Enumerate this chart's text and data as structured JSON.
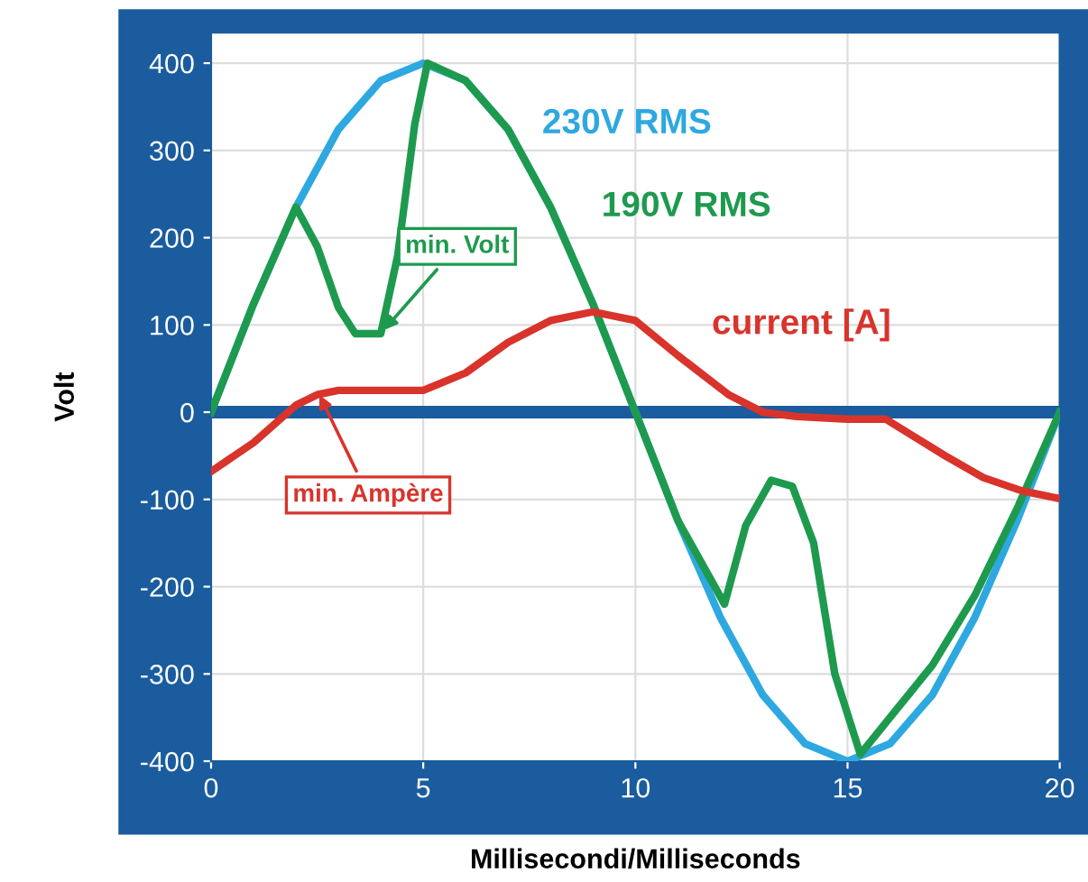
{
  "chart_data": {
    "type": "line",
    "xlabel": "Millisecondi/Milliseconds",
    "ylabel": "Volt",
    "xlim": [
      0,
      20
    ],
    "xticks": [
      0,
      5,
      10,
      15,
      20
    ],
    "ylim": [
      -400,
      435
    ],
    "yticks": [
      -400,
      -300,
      -200,
      -100,
      0,
      100,
      200,
      300,
      400
    ],
    "grid": true,
    "legend": false,
    "series": [
      {
        "name": "230V RMS",
        "color": "#2ea8e0",
        "x": [
          0,
          1,
          2,
          3,
          4,
          5,
          6,
          7,
          8,
          9,
          10,
          11,
          12,
          13,
          14,
          15,
          16,
          17,
          18,
          19,
          20
        ],
        "values": [
          0,
          124,
          235,
          324,
          380,
          400,
          380,
          324,
          235,
          124,
          0,
          -124,
          -235,
          -324,
          -380,
          -400,
          -380,
          -324,
          -235,
          -124,
          0
        ]
      },
      {
        "name": "190V RMS",
        "color": "#1e9a4e",
        "x": [
          0,
          1,
          2,
          2.5,
          3,
          3.4,
          4,
          4.4,
          4.8,
          5.1,
          6,
          7,
          8,
          9,
          10,
          11,
          12.1,
          12.6,
          13.2,
          13.7,
          14.2,
          14.7,
          15.3,
          16,
          17,
          18,
          19,
          20
        ],
        "values": [
          0,
          124,
          235,
          190,
          120,
          90,
          90,
          180,
          330,
          400,
          380,
          324,
          235,
          124,
          0,
          -124,
          -220,
          -130,
          -78,
          -85,
          -150,
          -300,
          -392,
          -350,
          -290,
          -210,
          -110,
          0
        ]
      },
      {
        "name": "current [A]",
        "color": "#d8342c",
        "x": [
          0,
          1,
          2,
          2.5,
          3,
          4,
          5,
          6,
          7,
          8,
          9,
          10,
          11,
          12.2,
          13,
          13.8,
          15,
          15.9,
          17.3,
          18.2,
          19.1,
          20
        ],
        "values": [
          -68,
          -35,
          8,
          20,
          25,
          25,
          25,
          45,
          80,
          105,
          115,
          105,
          65,
          20,
          0,
          -5,
          -8,
          -8,
          -50,
          -75,
          -90,
          -99
        ]
      }
    ],
    "ref_lines": [
      {
        "axis": "y",
        "value": 0,
        "color": "#1a5c9e"
      }
    ],
    "annotations": [
      {
        "text": "min. Volt",
        "x": 4,
        "y": 90
      },
      {
        "text": "min. Ampère",
        "x": 2.5,
        "y": 25
      }
    ]
  }
}
